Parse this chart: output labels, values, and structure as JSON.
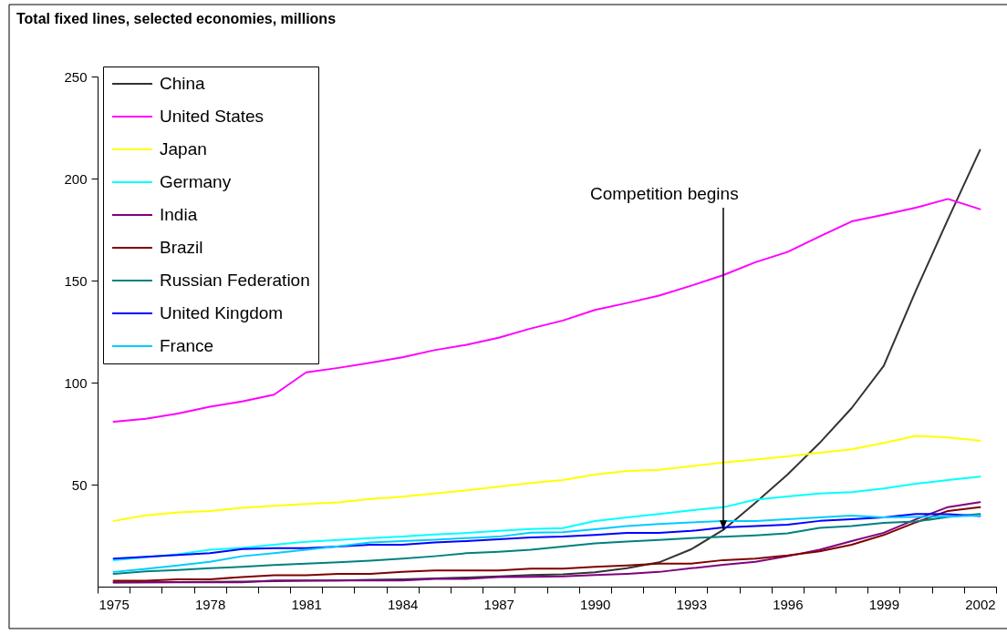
{
  "chart_data": {
    "type": "line",
    "title": "Total fixed lines, selected economies, millions",
    "x": [
      1975,
      1976,
      1977,
      1978,
      1979,
      1980,
      1981,
      1982,
      1983,
      1984,
      1985,
      1986,
      1987,
      1988,
      1989,
      1990,
      1991,
      1992,
      1993,
      1994,
      1995,
      1996,
      1997,
      1998,
      1999,
      2000,
      2001,
      2002
    ],
    "xlim": [
      1974.5,
      2002.5
    ],
    "xticks": [
      {
        "value": 1974.5,
        "label": null
      },
      1975,
      {
        "value": 1975.5,
        "label": null
      },
      {
        "value": 1976.5,
        "label": null
      },
      {
        "value": 1977.5,
        "label": null
      },
      1978,
      {
        "value": 1978.5,
        "label": null
      },
      {
        "value": 1979.5,
        "label": null
      },
      {
        "value": 1980.5,
        "label": null
      },
      1981,
      {
        "value": 1981.5,
        "label": null
      },
      {
        "value": 1982.5,
        "label": null
      },
      {
        "value": 1983.5,
        "label": null
      },
      1984,
      {
        "value": 1984.5,
        "label": null
      },
      {
        "value": 1985.5,
        "label": null
      },
      {
        "value": 1986.5,
        "label": null
      },
      1987,
      {
        "value": 1987.5,
        "label": null
      },
      {
        "value": 1988.5,
        "label": null
      },
      {
        "value": 1989.5,
        "label": null
      },
      1990,
      {
        "value": 1990.5,
        "label": null
      },
      {
        "value": 1991.5,
        "label": null
      },
      {
        "value": 1992.5,
        "label": null
      },
      1993,
      {
        "value": 1993.5,
        "label": null
      },
      {
        "value": 1994.5,
        "label": null
      },
      {
        "value": 1995.5,
        "label": null
      },
      1996,
      {
        "value": 1996.5,
        "label": null
      },
      {
        "value": 1997.5,
        "label": null
      },
      {
        "value": 1998.5,
        "label": null
      },
      1999,
      {
        "value": 1999.5,
        "label": null
      },
      {
        "value": 2000.5,
        "label": null
      },
      {
        "value": 2001.5,
        "label": null
      },
      2002,
      {
        "value": 2002.5,
        "label": null
      }
    ],
    "ylim": [
      0,
      250
    ],
    "yticks": [
      50,
      100,
      150,
      200,
      250
    ],
    "grid": false,
    "legend": "top left",
    "series": [
      {
        "name": "China",
        "color": "#333333",
        "values": [
          2.0,
          2.1,
          2.2,
          2.3,
          2.5,
          2.7,
          2.9,
          3.0,
          3.3,
          3.6,
          4.0,
          4.5,
          5.0,
          5.7,
          6.0,
          7.0,
          9.0,
          11.9,
          18.3,
          27.8,
          41.1,
          54.9,
          70.4,
          87.5,
          108.2,
          145,
          180,
          214
        ]
      },
      {
        "name": "United States",
        "color": "#ff00ff",
        "values": [
          80.8,
          82.3,
          84.8,
          88.2,
          90.7,
          94.1,
          105.0,
          107.2,
          109.7,
          112.4,
          115.9,
          118.5,
          122.0,
          126.5,
          130.4,
          135.6,
          139.0,
          142.6,
          147.5,
          152.7,
          159.0,
          164.0,
          171.6,
          179.0,
          182.3,
          185.7,
          190.0,
          185.0
        ]
      },
      {
        "name": "Japan",
        "color": "#ffff00",
        "values": [
          32.2,
          34.9,
          36.4,
          37.1,
          38.6,
          39.6,
          40.5,
          41.3,
          43.0,
          44.1,
          45.6,
          47.2,
          49.0,
          50.8,
          52.2,
          54.9,
          56.7,
          57.3,
          59.0,
          60.8,
          62.3,
          63.8,
          65.6,
          67.3,
          70.4,
          73.9,
          73.1,
          71.5
        ]
      },
      {
        "name": "Germany",
        "color": "#00ffff",
        "values": [
          13.0,
          14.4,
          15.9,
          18.1,
          19.0,
          20.5,
          22.0,
          22.9,
          23.8,
          24.5,
          25.6,
          26.3,
          27.3,
          28.2,
          28.7,
          32.1,
          33.9,
          35.6,
          37.4,
          38.9,
          42.6,
          44.2,
          45.6,
          46.3,
          48.1,
          50.4,
          52.2,
          53.9
        ]
      },
      {
        "name": "India",
        "color": "#800080",
        "values": [
          2.1,
          2.1,
          2.1,
          2.1,
          2.1,
          3.0,
          3.0,
          3.0,
          3.0,
          3.0,
          3.8,
          3.8,
          4.7,
          4.8,
          5.0,
          5.7,
          6.3,
          7.2,
          9.0,
          10.7,
          12.2,
          14.9,
          18.1,
          22.3,
          26.4,
          33.0,
          39.0,
          41.4
        ]
      },
      {
        "name": "Brazil",
        "color": "#800000",
        "values": [
          2.9,
          2.9,
          3.6,
          3.6,
          4.7,
          5.6,
          5.6,
          6.3,
          6.3,
          7.2,
          7.9,
          7.9,
          7.9,
          8.8,
          8.8,
          9.7,
          10.4,
          11.3,
          11.3,
          13.0,
          13.7,
          15.3,
          17.3,
          20.5,
          25.3,
          31.5,
          37.1,
          38.9
        ]
      },
      {
        "name": "Russian Federation",
        "color": "#008080",
        "values": [
          6.3,
          7.5,
          8.2,
          9.0,
          9.7,
          10.6,
          11.3,
          11.9,
          12.7,
          13.7,
          14.9,
          16.4,
          17.1,
          18.1,
          19.6,
          21.2,
          22.1,
          22.9,
          23.8,
          24.4,
          25.1,
          26.1,
          28.8,
          29.7,
          31.2,
          31.9,
          34.1,
          35.6
        ]
      },
      {
        "name": "United Kingdom",
        "color": "#0000ff",
        "values": [
          13.7,
          14.6,
          15.5,
          16.4,
          18.4,
          18.9,
          18.9,
          19.6,
          20.5,
          20.5,
          21.6,
          22.3,
          23.2,
          24.1,
          24.5,
          25.3,
          26.3,
          26.3,
          27.3,
          29.0,
          29.7,
          30.4,
          32.2,
          33.0,
          33.9,
          35.6,
          35.5,
          34.6
        ]
      },
      {
        "name": "France",
        "color": "#00ccff",
        "values": [
          7.2,
          8.7,
          10.4,
          12.2,
          14.9,
          16.4,
          18.1,
          19.8,
          21.6,
          22.3,
          23.0,
          23.8,
          24.5,
          26.4,
          26.7,
          28.1,
          29.7,
          30.7,
          31.5,
          32.1,
          32.1,
          33.0,
          33.9,
          34.8,
          33.9,
          34.1,
          34.4,
          34.8
        ]
      }
    ],
    "annotations": [
      {
        "text": "Competition begins",
        "x": 1994,
        "y": 28
      }
    ]
  }
}
